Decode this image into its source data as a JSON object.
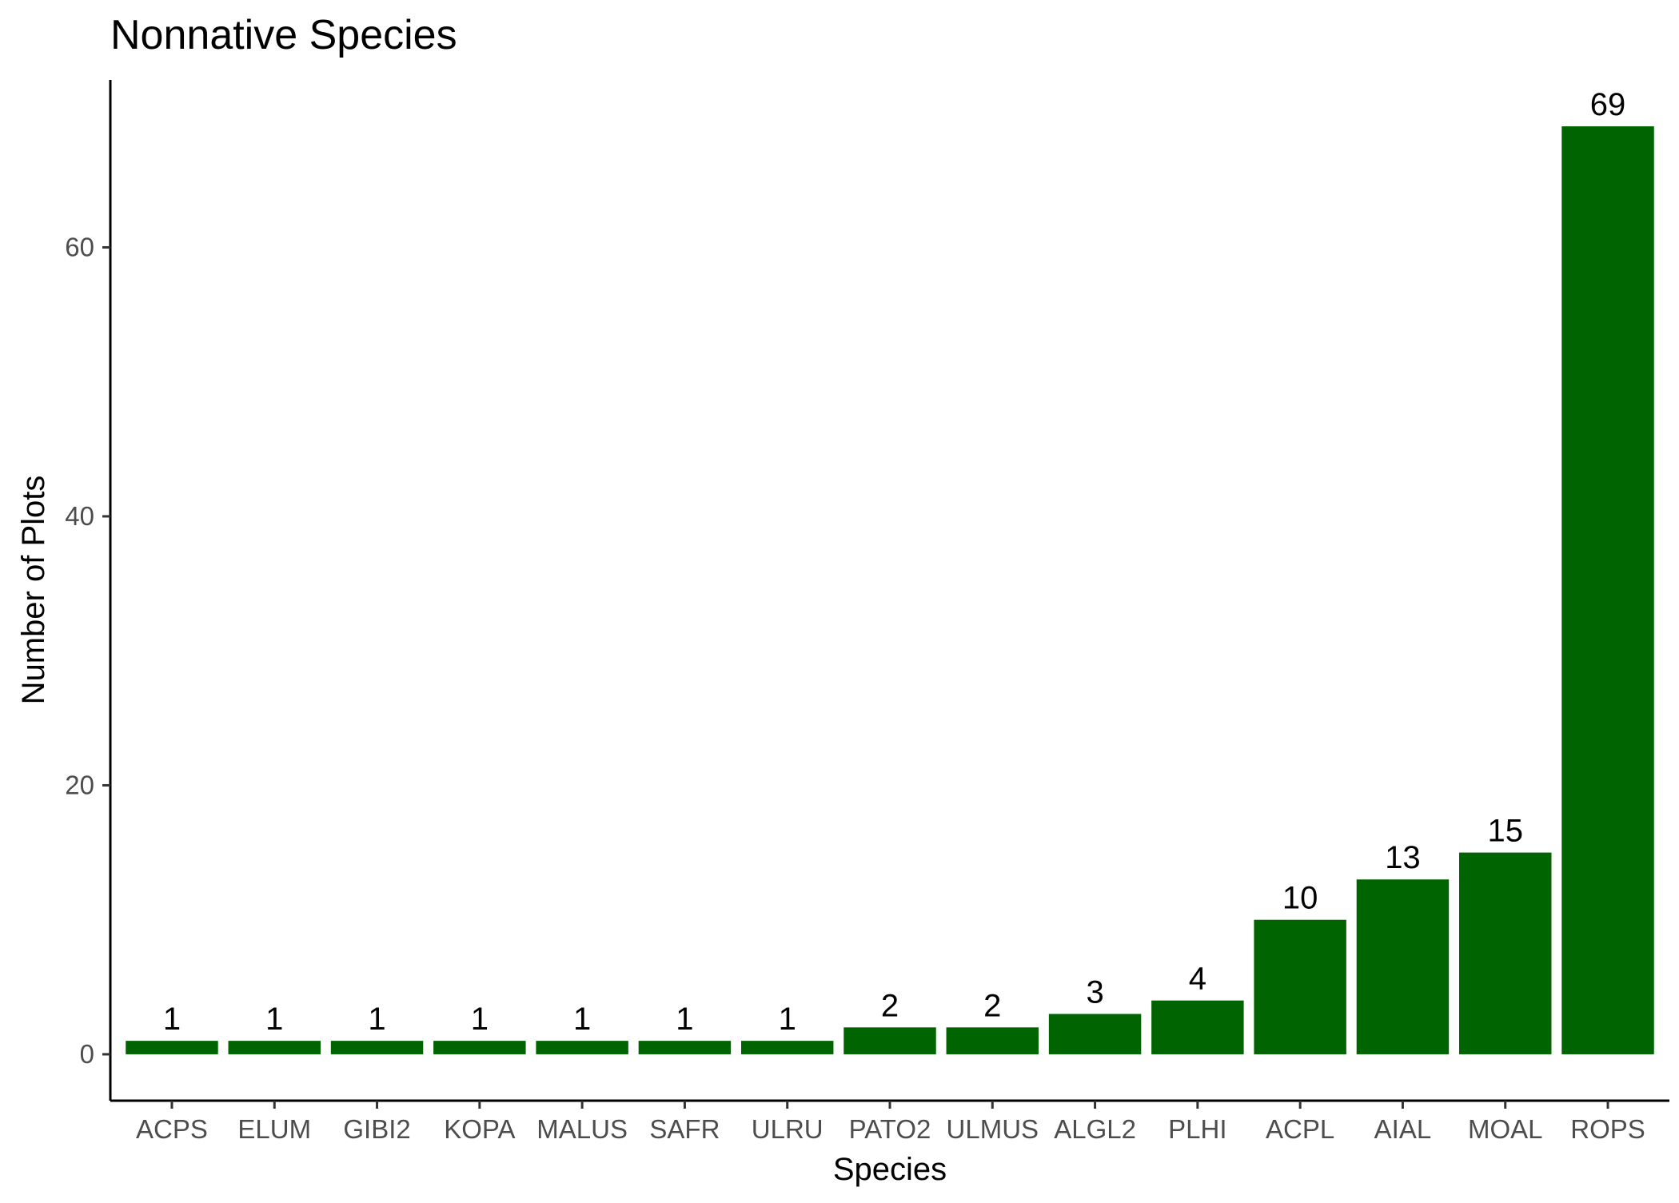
{
  "chart_data": {
    "type": "bar",
    "title": "Nonnative Species",
    "xlabel": "Species",
    "ylabel": "Number of Plots",
    "categories": [
      "ACPS",
      "ELUM",
      "GIBI2",
      "KOPA",
      "MALUS",
      "SAFR",
      "ULRU",
      "PATO2",
      "ULMUS",
      "ALGL2",
      "PLHI",
      "ACPL",
      "AIAL",
      "MOAL",
      "ROPS"
    ],
    "values": [
      1,
      1,
      1,
      1,
      1,
      1,
      1,
      2,
      2,
      3,
      4,
      10,
      13,
      15,
      69
    ],
    "data_labels": [
      "1",
      "1",
      "1",
      "1",
      "1",
      "1",
      "1",
      "2",
      "2",
      "3",
      "4",
      "10",
      "13",
      "15",
      "69"
    ],
    "yticks": [
      0,
      20,
      40,
      60
    ],
    "ytick_labels": [
      "0",
      "20",
      "40",
      "60"
    ],
    "ylim": [
      -3.45,
      72.45
    ],
    "grid": false,
    "legend": "none",
    "colors": {
      "bar": "#006400",
      "axis": "#000000",
      "tick_text": "#4d4d4d",
      "background": "#ffffff"
    }
  }
}
